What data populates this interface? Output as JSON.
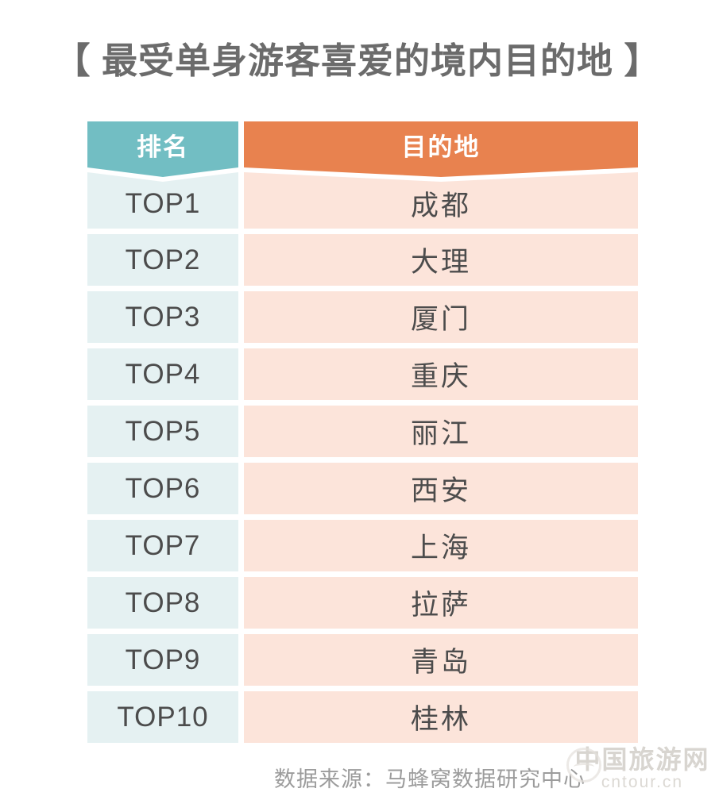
{
  "page": {
    "background": "#ffffff"
  },
  "title": {
    "text": "【 最受单身游客喜爱的境内目的地 】",
    "color": "#6b6b6b"
  },
  "table": {
    "rank_header": "排名",
    "destination_header": "目的地",
    "rows": [
      {
        "rank": "TOP1",
        "destination": "成都"
      },
      {
        "rank": "TOP2",
        "destination": "大理"
      },
      {
        "rank": "TOP3",
        "destination": "厦门"
      },
      {
        "rank": "TOP4",
        "destination": "重庆"
      },
      {
        "rank": "TOP5",
        "destination": "丽江"
      },
      {
        "rank": "TOP6",
        "destination": "西安"
      },
      {
        "rank": "TOP7",
        "destination": "上海"
      },
      {
        "rank": "TOP8",
        "destination": "拉萨"
      },
      {
        "rank": "TOP9",
        "destination": "青岛"
      },
      {
        "rank": "TOP10",
        "destination": "桂林"
      }
    ],
    "colors": {
      "rank_header_bg": "#72bec3",
      "destination_header_bg": "#e8824f",
      "rank_row_bg": "#e5f1f2",
      "destination_row_bg": "#fce4da",
      "header_text": "#ffffff",
      "cell_text": "#4c4c4c"
    }
  },
  "footer": {
    "source": "数据来源：马蜂窝数据研究中心",
    "color": "#9c9c9c"
  },
  "watermark": {
    "site_name": "中国旅游网",
    "site_url": "cntour.cn"
  },
  "chart_data": {
    "type": "table",
    "title": "最受单身游客喜爱的境内目的地",
    "columns": [
      "排名",
      "目的地"
    ],
    "rows": [
      [
        "TOP1",
        "成都"
      ],
      [
        "TOP2",
        "大理"
      ],
      [
        "TOP3",
        "厦门"
      ],
      [
        "TOP4",
        "重庆"
      ],
      [
        "TOP5",
        "丽江"
      ],
      [
        "TOP6",
        "西安"
      ],
      [
        "TOP7",
        "上海"
      ],
      [
        "TOP8",
        "拉萨"
      ],
      [
        "TOP9",
        "青岛"
      ],
      [
        "TOP10",
        "桂林"
      ]
    ],
    "source": "数据来源：马蜂窝数据研究中心"
  }
}
